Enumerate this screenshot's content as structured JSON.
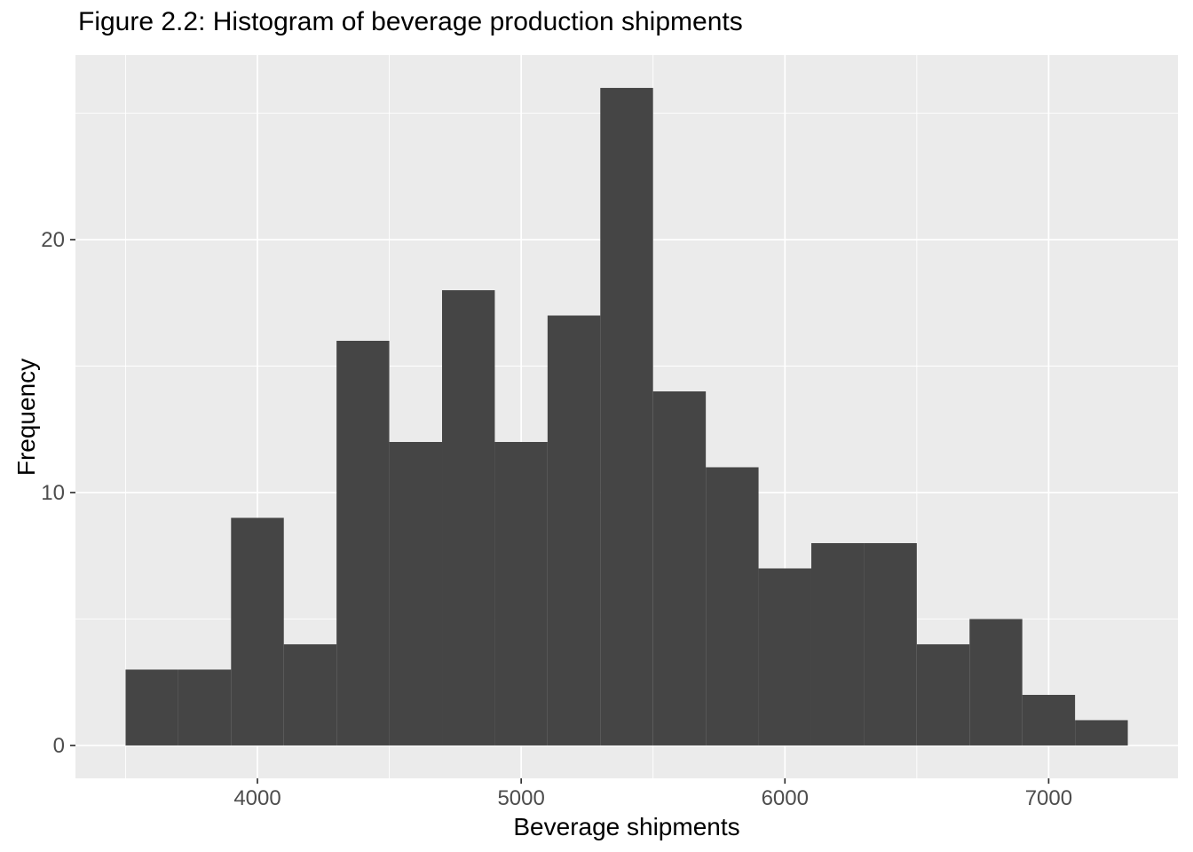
{
  "chart_data": {
    "type": "histogram",
    "title": "Figure 2.2: Histogram of beverage production shipments",
    "xlabel": "Beverage shipments",
    "ylabel": "Frequency",
    "bin_width": 200,
    "bins": [
      {
        "x0": 3500,
        "x1": 3700,
        "count": 3
      },
      {
        "x0": 3700,
        "x1": 3900,
        "count": 3
      },
      {
        "x0": 3900,
        "x1": 4100,
        "count": 9
      },
      {
        "x0": 4100,
        "x1": 4300,
        "count": 4
      },
      {
        "x0": 4300,
        "x1": 4500,
        "count": 16
      },
      {
        "x0": 4500,
        "x1": 4700,
        "count": 12
      },
      {
        "x0": 4700,
        "x1": 4900,
        "count": 18
      },
      {
        "x0": 4900,
        "x1": 5100,
        "count": 12
      },
      {
        "x0": 5100,
        "x1": 5300,
        "count": 17
      },
      {
        "x0": 5300,
        "x1": 5500,
        "count": 26
      },
      {
        "x0": 5500,
        "x1": 5700,
        "count": 14
      },
      {
        "x0": 5700,
        "x1": 5900,
        "count": 11
      },
      {
        "x0": 5900,
        "x1": 6100,
        "count": 7
      },
      {
        "x0": 6100,
        "x1": 6300,
        "count": 8
      },
      {
        "x0": 6300,
        "x1": 6500,
        "count": 8
      },
      {
        "x0": 6500,
        "x1": 6700,
        "count": 4
      },
      {
        "x0": 6700,
        "x1": 6900,
        "count": 5
      },
      {
        "x0": 6900,
        "x1": 7100,
        "count": 2
      },
      {
        "x0": 7100,
        "x1": 7300,
        "count": 1
      }
    ],
    "x_ticks": [
      4000,
      5000,
      6000,
      7000
    ],
    "y_ticks": [
      0,
      10,
      20
    ],
    "x_minor_ticks": [
      3500,
      4500,
      5500,
      6500
    ],
    "y_minor_ticks": [
      5,
      15,
      25
    ],
    "x_range": [
      3310,
      7490
    ],
    "y_range": [
      -1.3,
      27.3
    ],
    "grid": "on",
    "legend": "none",
    "style": {
      "panel_bg": "#EBEBEB",
      "grid_color": "#FFFFFF",
      "bar_fill": "#454545",
      "tick_color": "#333333",
      "tick_label_color": "#4D4D4D"
    }
  }
}
